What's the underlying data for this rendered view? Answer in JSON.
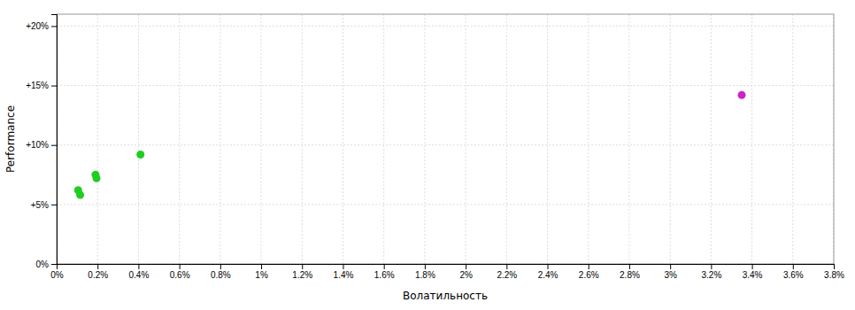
{
  "chart_data": {
    "type": "scatter",
    "xlabel": "Волатильность",
    "ylabel": "Performance",
    "xlim": [
      0.0,
      0.038
    ],
    "ylim": [
      0.0,
      0.21
    ],
    "xticks": [
      {
        "value": 0.0,
        "label": "0%"
      },
      {
        "value": 0.002,
        "label": "0.2%"
      },
      {
        "value": 0.004,
        "label": "0.4%"
      },
      {
        "value": 0.006,
        "label": "0.6%"
      },
      {
        "value": 0.008,
        "label": "0.8%"
      },
      {
        "value": 0.01,
        "label": "1%"
      },
      {
        "value": 0.012,
        "label": "1.2%"
      },
      {
        "value": 0.014,
        "label": "1.4%"
      },
      {
        "value": 0.016,
        "label": "1.6%"
      },
      {
        "value": 0.018,
        "label": "1.8%"
      },
      {
        "value": 0.02,
        "label": "2%"
      },
      {
        "value": 0.022,
        "label": "2.2%"
      },
      {
        "value": 0.024,
        "label": "2.4%"
      },
      {
        "value": 0.026,
        "label": "2.6%"
      },
      {
        "value": 0.028,
        "label": "2.8%"
      },
      {
        "value": 0.03,
        "label": "3%"
      },
      {
        "value": 0.032,
        "label": "3.2%"
      },
      {
        "value": 0.034,
        "label": "3.4%"
      },
      {
        "value": 0.036,
        "label": "3.6%"
      },
      {
        "value": 0.038,
        "label": "3.8%"
      }
    ],
    "yticks": [
      {
        "value": 0.0,
        "label": "0%"
      },
      {
        "value": 0.05,
        "label": "+5%"
      },
      {
        "value": 0.1,
        "label": "+10%"
      },
      {
        "value": 0.15,
        "label": "+15%"
      },
      {
        "value": 0.2,
        "label": "+20%"
      }
    ],
    "grid": true,
    "series": [
      {
        "color": "#22cc22",
        "x": [
          0.00105,
          0.00115,
          0.0019,
          0.00195,
          0.0041
        ],
        "values": [
          0.062,
          0.058,
          0.075,
          0.072,
          0.092
        ]
      },
      {
        "color": "#cc22cc",
        "x": [
          0.0335
        ],
        "values": [
          0.142
        ]
      }
    ]
  }
}
